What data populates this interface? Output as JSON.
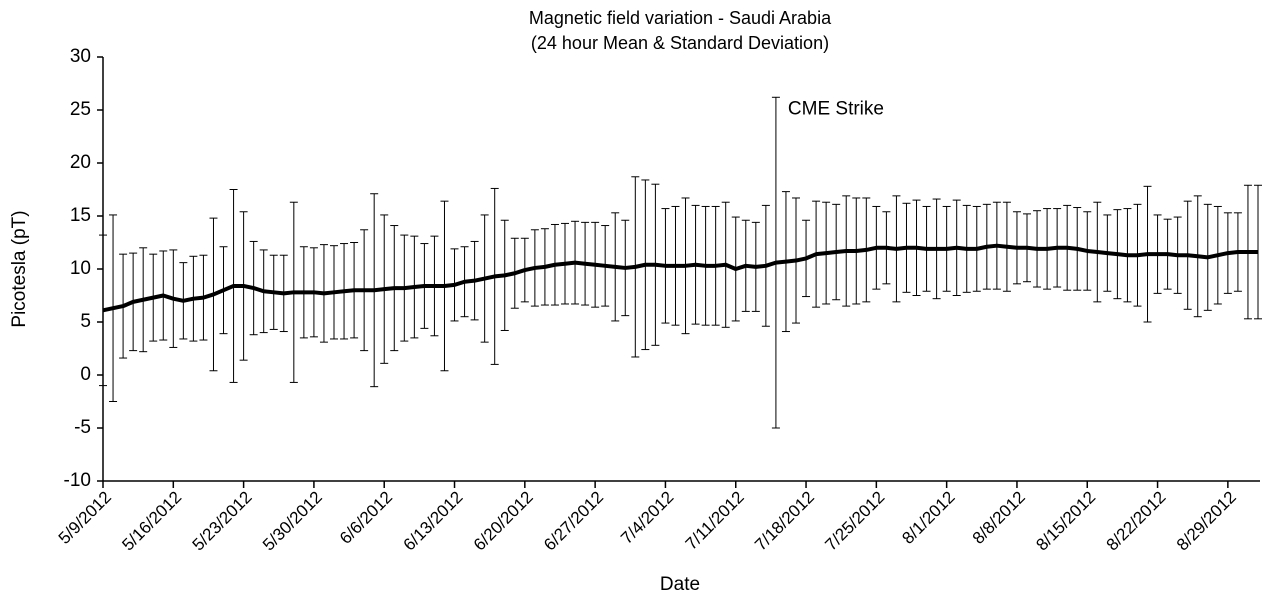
{
  "chart_data": {
    "type": "line",
    "title": "Magnetic field variation - Saudi Arabia",
    "subtitle": "(24 hour Mean & Standard Deviation)",
    "x_label": "Date",
    "y_label": "Picotesla (pT)",
    "annotation": "CME Strike",
    "x": [
      "5/9/2012",
      "5/10/2012",
      "5/11/2012",
      "5/12/2012",
      "5/13/2012",
      "5/14/2012",
      "5/15/2012",
      "5/16/2012",
      "5/17/2012",
      "5/18/2012",
      "5/19/2012",
      "5/20/2012",
      "5/21/2012",
      "5/22/2012",
      "5/23/2012",
      "5/24/2012",
      "5/25/2012",
      "5/26/2012",
      "5/27/2012",
      "5/28/2012",
      "5/29/2012",
      "5/30/2012",
      "5/31/2012",
      "6/1/2012",
      "6/2/2012",
      "6/3/2012",
      "6/4/2012",
      "6/5/2012",
      "6/6/2012",
      "6/7/2012",
      "6/8/2012",
      "6/9/2012",
      "6/10/2012",
      "6/11/2012",
      "6/12/2012",
      "6/13/2012",
      "6/14/2012",
      "6/15/2012",
      "6/16/2012",
      "6/17/2012",
      "6/18/2012",
      "6/19/2012",
      "6/20/2012",
      "6/21/2012",
      "6/22/2012",
      "6/23/2012",
      "6/24/2012",
      "6/25/2012",
      "6/26/2012",
      "6/27/2012",
      "6/28/2012",
      "6/29/2012",
      "6/30/2012",
      "7/1/2012",
      "7/2/2012",
      "7/3/2012",
      "7/4/2012",
      "7/5/2012",
      "7/6/2012",
      "7/7/2012",
      "7/8/2012",
      "7/9/2012",
      "7/10/2012",
      "7/11/2012",
      "7/12/2012",
      "7/13/2012",
      "7/14/2012",
      "7/15/2012",
      "7/16/2012",
      "7/17/2012",
      "7/18/2012",
      "7/19/2012",
      "7/20/2012",
      "7/21/2012",
      "7/22/2012",
      "7/23/2012",
      "7/24/2012",
      "7/25/2012",
      "7/26/2012",
      "7/27/2012",
      "7/28/2012",
      "7/29/2012",
      "7/30/2012",
      "7/31/2012",
      "8/1/2012",
      "8/2/2012",
      "8/3/2012",
      "8/4/2012",
      "8/5/2012",
      "8/6/2012",
      "8/7/2012",
      "8/8/2012",
      "8/9/2012",
      "8/10/2012",
      "8/11/2012",
      "8/12/2012",
      "8/13/2012",
      "8/14/2012",
      "8/15/2012",
      "8/16/2012",
      "8/17/2012",
      "8/18/2012",
      "8/19/2012",
      "8/20/2012",
      "8/21/2012",
      "8/22/2012",
      "8/23/2012",
      "8/24/2012",
      "8/25/2012",
      "8/26/2012",
      "8/27/2012",
      "8/28/2012",
      "8/29/2012",
      "8/30/2012",
      "8/31/2012",
      "9/1/2012"
    ],
    "series": [
      {
        "color": "#000000",
        "values": [
          6.1,
          6.3,
          6.5,
          6.9,
          7.1,
          7.3,
          7.5,
          7.2,
          7.0,
          7.2,
          7.3,
          7.6,
          8.0,
          8.4,
          8.4,
          8.2,
          7.9,
          7.8,
          7.7,
          7.8,
          7.8,
          7.8,
          7.7,
          7.8,
          7.9,
          8.0,
          8.0,
          8.0,
          8.1,
          8.2,
          8.2,
          8.3,
          8.4,
          8.4,
          8.4,
          8.5,
          8.8,
          8.9,
          9.1,
          9.3,
          9.4,
          9.6,
          9.9,
          10.1,
          10.2,
          10.4,
          10.5,
          10.6,
          10.5,
          10.4,
          10.3,
          10.2,
          10.1,
          10.2,
          10.4,
          10.4,
          10.3,
          10.3,
          10.3,
          10.4,
          10.3,
          10.3,
          10.4,
          10.0,
          10.3,
          10.2,
          10.3,
          10.6,
          10.7,
          10.8,
          11.0,
          11.4,
          11.5,
          11.6,
          11.7,
          11.7,
          11.8,
          12.0,
          12.0,
          11.9,
          12.0,
          12.0,
          11.9,
          11.9,
          11.9,
          12.0,
          11.9,
          11.9,
          12.1,
          12.2,
          12.1,
          12.0,
          12.0,
          11.9,
          11.9,
          12.0,
          12.0,
          11.9,
          11.7,
          11.6,
          11.5,
          11.4,
          11.3,
          11.3,
          11.4,
          11.4,
          11.4,
          11.3,
          11.3,
          11.2,
          11.1,
          11.3,
          11.5,
          11.6,
          11.6,
          11.6
        ],
        "errors": [
          7.1,
          8.8,
          4.9,
          4.6,
          4.9,
          4.1,
          4.2,
          4.6,
          3.6,
          4.0,
          4.0,
          7.2,
          4.1,
          9.1,
          7.0,
          4.4,
          3.9,
          3.5,
          3.6,
          8.5,
          4.3,
          4.2,
          4.6,
          4.4,
          4.5,
          4.5,
          5.7,
          9.1,
          7.0,
          5.9,
          5.0,
          4.8,
          4.0,
          4.7,
          8.0,
          3.4,
          3.3,
          3.7,
          6.0,
          8.3,
          5.2,
          3.3,
          3.0,
          3.6,
          3.6,
          3.8,
          3.8,
          3.9,
          3.9,
          4.0,
          3.8,
          5.1,
          4.5,
          8.5,
          8.0,
          7.6,
          5.4,
          5.6,
          6.4,
          5.6,
          5.6,
          5.6,
          5.9,
          4.9,
          4.3,
          4.2,
          5.7,
          15.6,
          6.6,
          5.9,
          3.6,
          5.0,
          4.8,
          4.5,
          5.2,
          5.0,
          4.9,
          3.9,
          3.4,
          5.0,
          4.2,
          4.5,
          4.0,
          4.7,
          4.0,
          4.5,
          4.1,
          4.0,
          4.0,
          4.1,
          4.2,
          3.4,
          3.2,
          3.6,
          3.8,
          3.7,
          4.0,
          3.9,
          3.7,
          4.7,
          3.6,
          4.2,
          4.4,
          4.8,
          6.4,
          3.7,
          3.3,
          3.6,
          5.1,
          5.7,
          5.0,
          4.6,
          3.8,
          3.7,
          6.3,
          6.3
        ]
      }
    ],
    "xlim": [
      "5/9/2012",
      "9/1/2012"
    ],
    "xticks": [
      "5/9/2012",
      "5/16/2012",
      "5/23/2012",
      "5/30/2012",
      "6/6/2012",
      "6/13/2012",
      "6/20/2012",
      "6/27/2012",
      "7/4/2012",
      "7/11/2012",
      "7/18/2012",
      "7/25/2012",
      "8/1/2012",
      "8/8/2012",
      "8/15/2012",
      "8/22/2012",
      "8/29/2012"
    ],
    "ylim": [
      -10,
      30
    ],
    "yticks": [
      -10,
      -5,
      0,
      5,
      10,
      15,
      20,
      25,
      30
    ],
    "grid": false
  }
}
